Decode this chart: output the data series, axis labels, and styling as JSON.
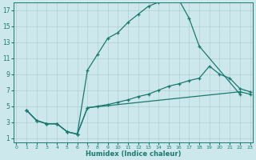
{
  "xlabel": "Humidex (Indice chaleur)",
  "bg_color": "#cde8ec",
  "grid_color": "#b0cdd2",
  "line_color": "#1a7a6e",
  "xlim": [
    -0.3,
    23.3
  ],
  "ylim": [
    0.5,
    18.0
  ],
  "xticks": [
    0,
    1,
    2,
    3,
    4,
    5,
    6,
    7,
    8,
    9,
    10,
    11,
    12,
    13,
    14,
    15,
    16,
    17,
    18,
    19,
    20,
    21,
    22,
    23
  ],
  "yticks": [
    1,
    3,
    5,
    7,
    9,
    11,
    13,
    15,
    17
  ],
  "curve1_x": [
    1,
    2,
    3,
    4,
    5,
    6,
    7,
    8,
    9,
    10,
    11,
    12,
    13,
    14,
    15,
    16,
    17,
    18,
    22
  ],
  "curve1_y": [
    4.5,
    3.2,
    2.8,
    2.8,
    1.8,
    1.5,
    9.5,
    11.5,
    13.5,
    14.2,
    15.5,
    16.5,
    17.5,
    18.0,
    18.3,
    18.3,
    16.0,
    12.5,
    6.5
  ],
  "curve2_x": [
    1,
    2,
    3,
    4,
    5,
    6,
    7,
    8,
    9,
    10,
    11,
    12,
    13,
    14,
    15,
    16,
    17,
    18,
    19,
    20,
    21,
    22,
    23
  ],
  "curve2_y": [
    4.5,
    3.2,
    2.8,
    2.8,
    1.8,
    1.5,
    4.8,
    5.0,
    5.2,
    5.5,
    5.8,
    6.2,
    6.5,
    7.0,
    7.5,
    7.8,
    8.2,
    8.5,
    10.0,
    9.0,
    8.5,
    7.2,
    6.8
  ],
  "curve3_x": [
    1,
    2,
    3,
    4,
    5,
    6,
    7,
    22,
    23
  ],
  "curve3_y": [
    4.5,
    3.2,
    2.8,
    2.8,
    1.8,
    1.5,
    4.8,
    6.8,
    6.5
  ]
}
